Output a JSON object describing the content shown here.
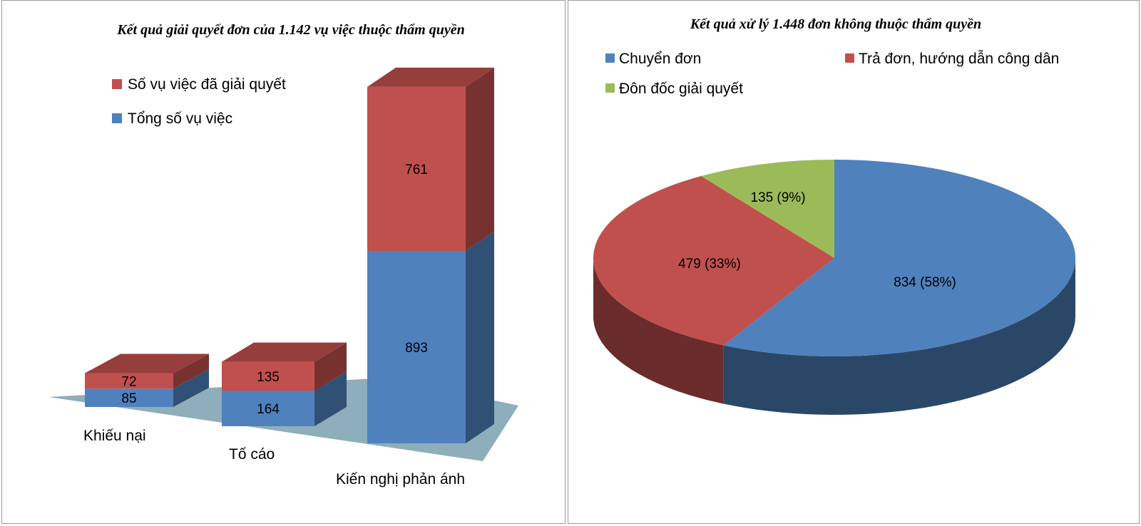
{
  "chart_data": [
    {
      "type": "bar",
      "stacked": true,
      "three_d": true,
      "title": "Kết quả giải quyết đơn của 1.142 vụ việc thuộc thẩm quyền",
      "categories": [
        "Khiếu nại",
        "Tố cáo",
        "Kiến nghị phản ánh"
      ],
      "series": [
        {
          "name": "Tổng số vụ việc",
          "values": [
            85,
            164,
            893
          ],
          "color": "#4f81bd"
        },
        {
          "name": "Số vụ việc đã giải quyết",
          "values": [
            72,
            135,
            761
          ],
          "color": "#c0504d"
        }
      ],
      "legend_position": "top-left",
      "grid": false
    },
    {
      "type": "pie",
      "three_d": true,
      "title": "Kết quả xử  lý 1.448 đơn không thuộc thẩm quyền",
      "slices": [
        {
          "name": "Chuyển đơn",
          "value": 834,
          "label": "834 (58%)",
          "color": "#4f81bd"
        },
        {
          "name": "Trả đơn, hướng dẫn công dân",
          "value": 479,
          "label": "479 (33%)",
          "color": "#c0504d"
        },
        {
          "name": "Đôn đốc giải quyết",
          "value": 135,
          "label": "135 (9%)",
          "color": "#9bbb59"
        }
      ],
      "legend_position": "top"
    }
  ]
}
